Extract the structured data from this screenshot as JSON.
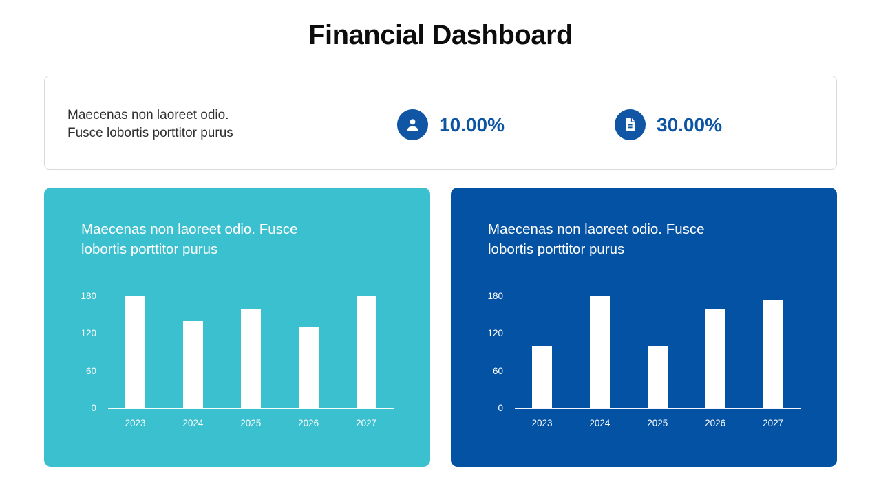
{
  "page": {
    "title": "Financial Dashboard"
  },
  "summary_card": {
    "description": "Maecenas non laoreet odio.\nFusce lobortis porttitor purus",
    "stats": [
      {
        "icon": "person-icon",
        "value": "10.00%"
      },
      {
        "icon": "document-icon",
        "value": "30.00%"
      }
    ]
  },
  "colors": {
    "accent_blue": "#1156A5",
    "stat_text_blue": "#0C55A5",
    "teal_card": "#3BC0CF",
    "blue_card": "#0452A4",
    "card_border": "#D9D9D9",
    "bar_white": "#FFFFFF"
  },
  "chart_data": [
    {
      "type": "bar",
      "title": "Maecenas non laoreet odio. Fusce lobortis porttitor purus",
      "categories": [
        "2023",
        "2024",
        "2025",
        "2026",
        "2027"
      ],
      "values": [
        180,
        140,
        160,
        130,
        180
      ],
      "xlabel": "",
      "ylabel": "",
      "ylim": [
        0,
        180
      ],
      "yticks": [
        180,
        120,
        60,
        0
      ],
      "grid": false,
      "legend": false,
      "bar_color": "#FFFFFF",
      "card_color": "#3BC0CF"
    },
    {
      "type": "bar",
      "title": "Maecenas non laoreet odio. Fusce lobortis porttitor purus",
      "categories": [
        "2023",
        "2024",
        "2025",
        "2026",
        "2027"
      ],
      "values": [
        100,
        180,
        100,
        160,
        175
      ],
      "xlabel": "",
      "ylabel": "",
      "ylim": [
        0,
        180
      ],
      "yticks": [
        180,
        120,
        60,
        0
      ],
      "grid": false,
      "legend": false,
      "bar_color": "#FFFFFF",
      "card_color": "#0452A4"
    }
  ]
}
